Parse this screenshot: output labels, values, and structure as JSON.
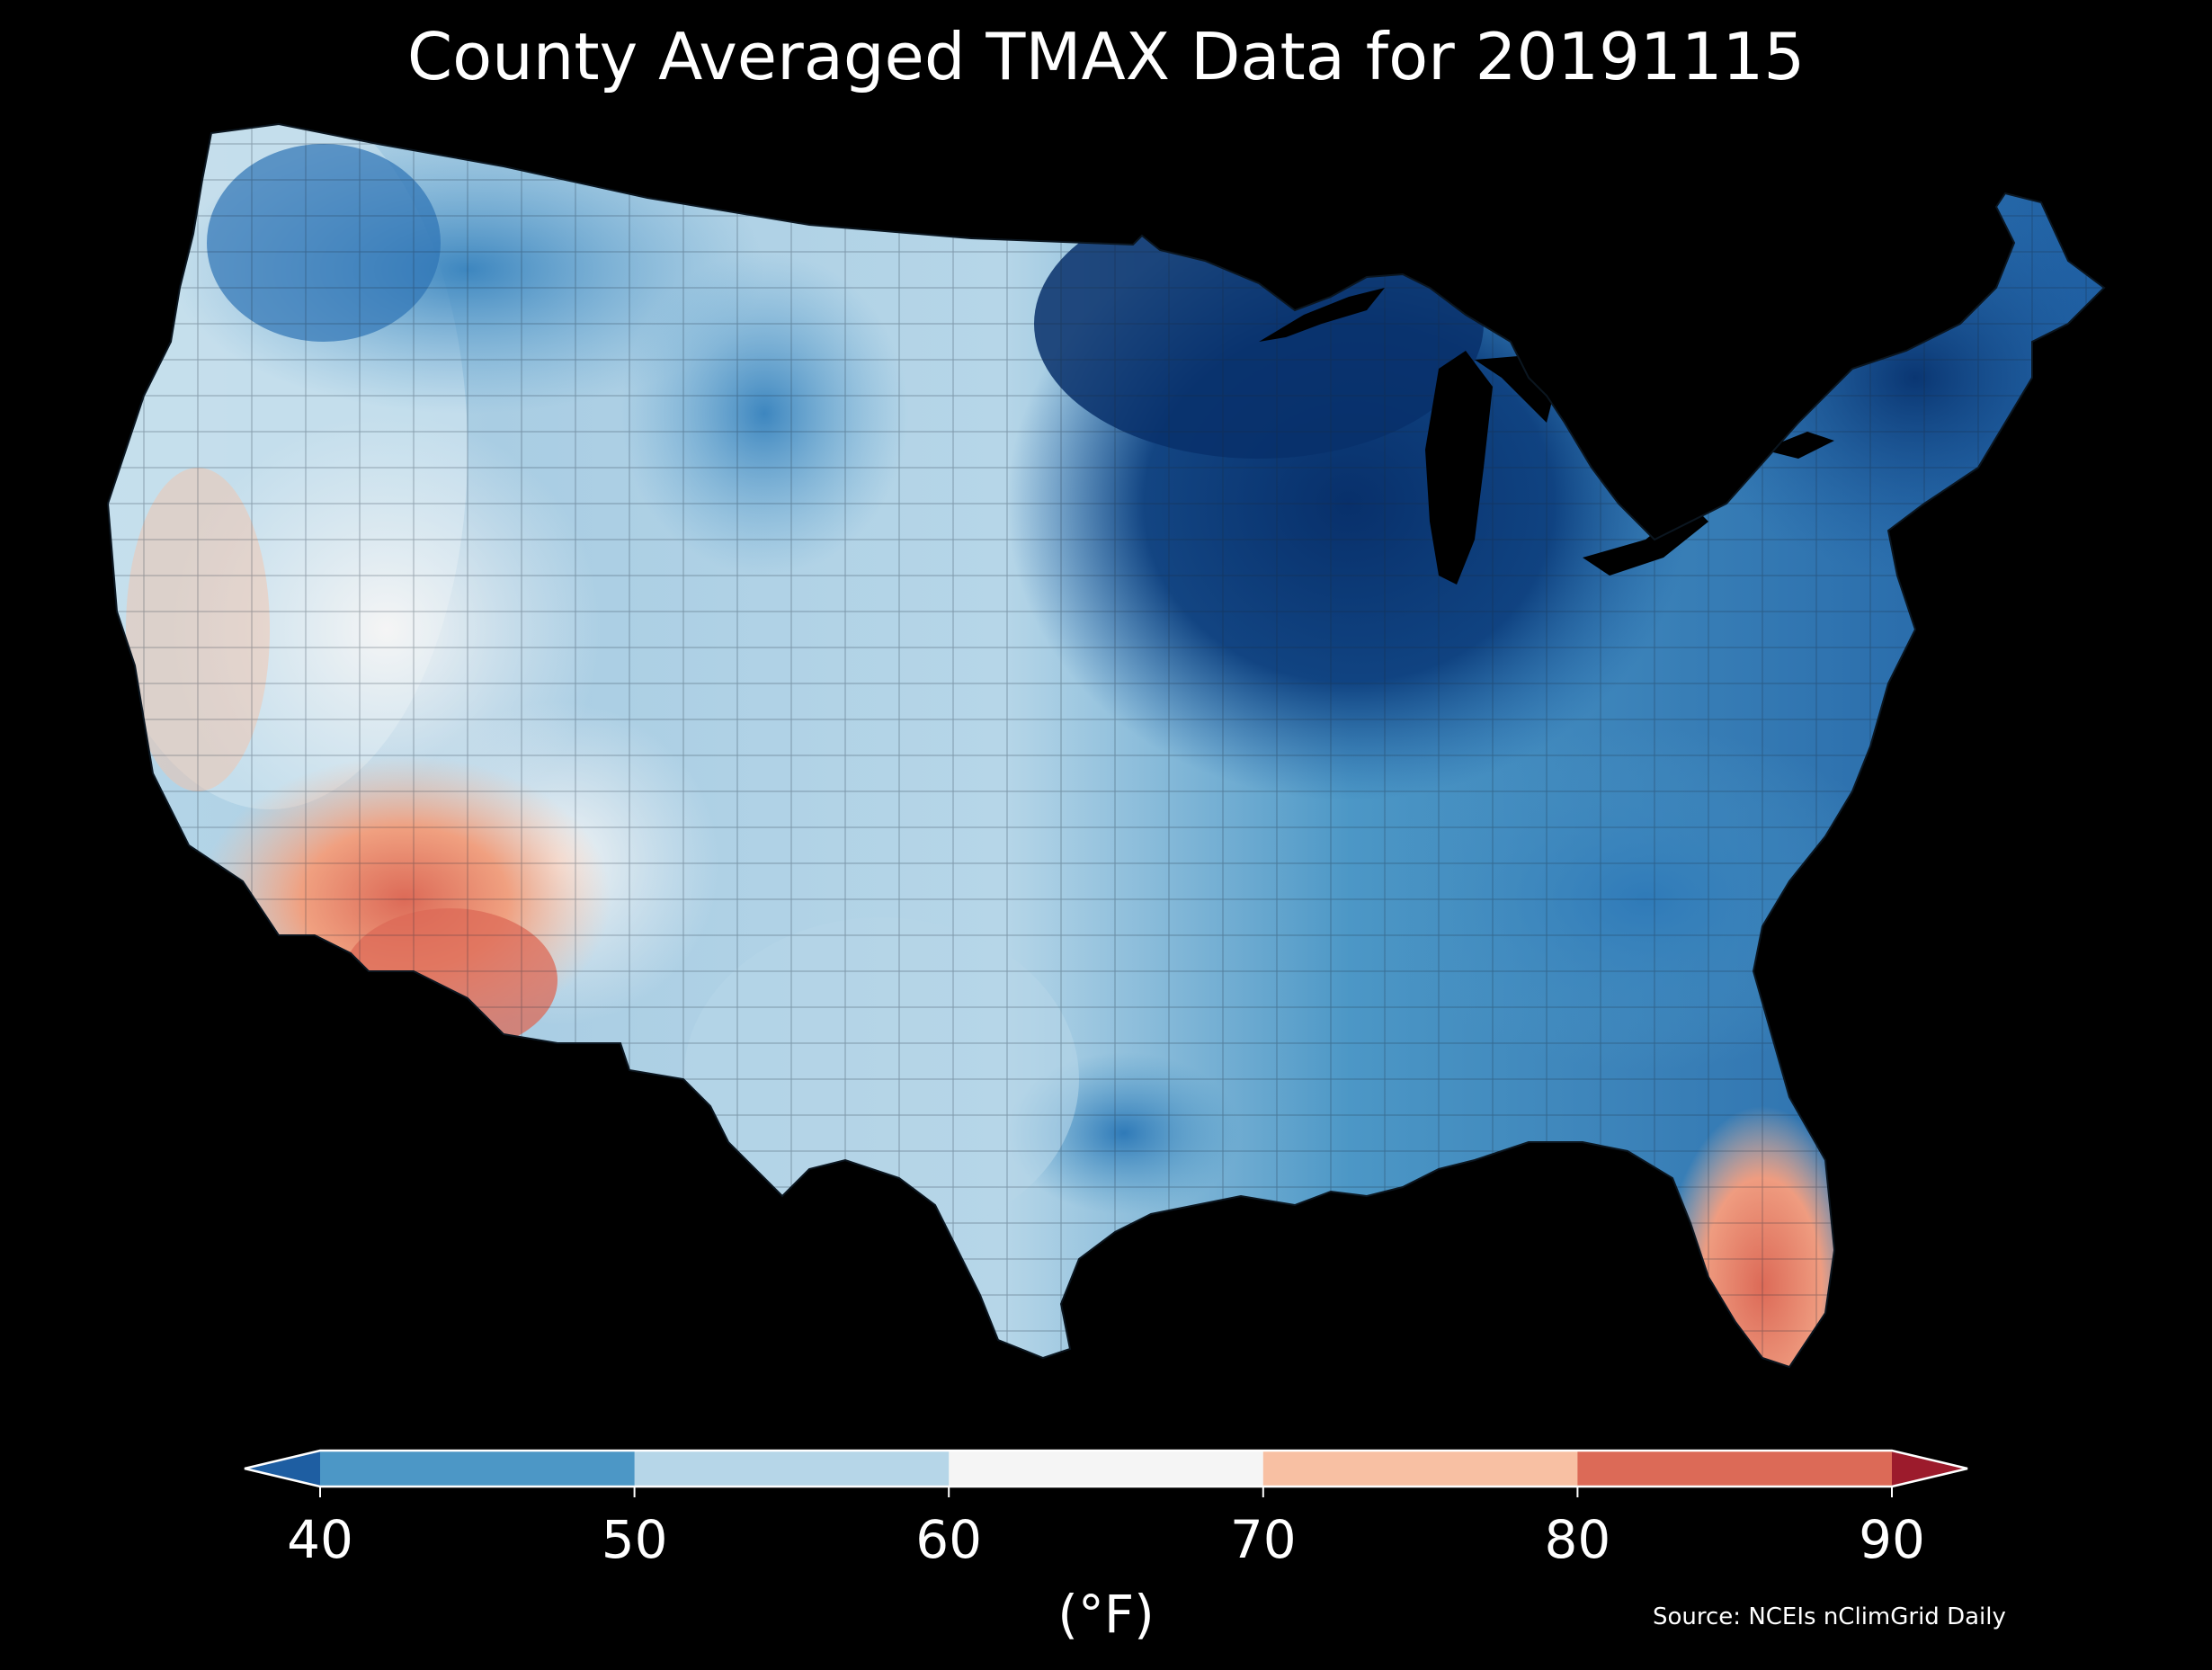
{
  "title": "County Averaged TMAX Data for 20191115",
  "source": "Source: NCEIs nClimGrid Daily",
  "colorbar": {
    "unit_label": "(°F)",
    "ticks": [
      "40",
      "50",
      "60",
      "70",
      "80",
      "90"
    ],
    "bins": [
      {
        "range": "<40",
        "color": "#1e5ea2"
      },
      {
        "range": "40-50",
        "color": "#4c97c6"
      },
      {
        "range": "50-60",
        "color": "#b6d6e8"
      },
      {
        "range": "60-70",
        "color": "#f5f5f5"
      },
      {
        "range": "70-80",
        "color": "#f8c0a3"
      },
      {
        "range": "80-90",
        "color": "#dc6a57"
      },
      {
        "range": ">90",
        "color": "#9c1b2c"
      }
    ]
  },
  "map": {
    "variable": "TMAX",
    "region": "Contiguous United States counties",
    "colors": {
      "background": "#000000",
      "coldest": "#08306b",
      "very_cold": "#1e5ea2",
      "cold": "#4c97c6",
      "cool": "#b6d6e8",
      "mild": "#f5f5f5",
      "warm": "#f8c0a3",
      "hot": "#dc6a57"
    }
  }
}
